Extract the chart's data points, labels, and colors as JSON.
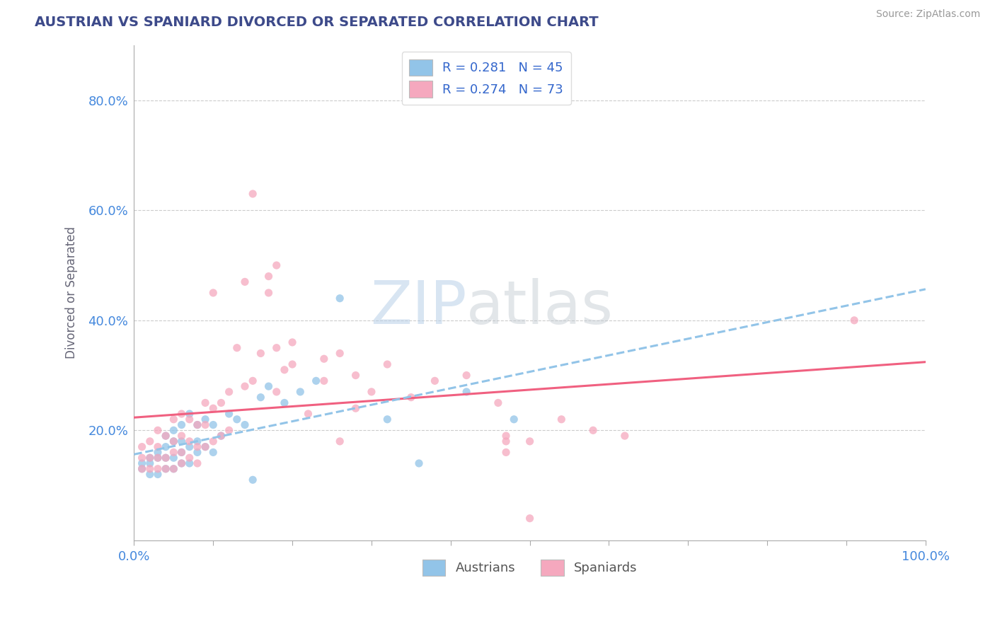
{
  "title": "AUSTRIAN VS SPANIARD DIVORCED OR SEPARATED CORRELATION CHART",
  "source": "Source: ZipAtlas.com",
  "ylabel": "Divorced or Separated",
  "xlim": [
    0.0,
    1.0
  ],
  "ylim": [
    0.0,
    0.9
  ],
  "ytick_vals": [
    0.2,
    0.4,
    0.6,
    0.8
  ],
  "ytick_labels": [
    "20.0%",
    "40.0%",
    "60.0%",
    "80.0%"
  ],
  "xtick_vals": [
    0.0,
    0.1,
    0.2,
    0.3,
    0.4,
    0.5,
    0.6,
    0.7,
    0.8,
    0.9,
    1.0
  ],
  "xtick_end_labels": [
    "0.0%",
    "100.0%"
  ],
  "watermark_zip": "ZIP",
  "watermark_atlas": "atlas",
  "background_color": "#FFFFFF",
  "grid_color": "#CCCCCC",
  "title_color": "#3d4a8a",
  "source_color": "#999999",
  "ylabel_color": "#666677",
  "tick_label_color": "#4488DD",
  "austrian_color": "#92C4E8",
  "spaniard_color": "#F5A8BE",
  "austrian_line_color": "#92C4E8",
  "spaniard_line_color": "#F06080",
  "legend_frame_color": "#DDDDDD",
  "legend_text_color": "#333333",
  "legend_val_color": "#3366CC",
  "austrians_x": [
    0.01,
    0.01,
    0.02,
    0.02,
    0.02,
    0.03,
    0.03,
    0.03,
    0.04,
    0.04,
    0.04,
    0.04,
    0.05,
    0.05,
    0.05,
    0.05,
    0.06,
    0.06,
    0.06,
    0.06,
    0.07,
    0.07,
    0.07,
    0.08,
    0.08,
    0.08,
    0.09,
    0.09,
    0.1,
    0.1,
    0.11,
    0.12,
    0.13,
    0.14,
    0.15,
    0.16,
    0.17,
    0.19,
    0.21,
    0.23,
    0.26,
    0.32,
    0.36,
    0.42,
    0.48
  ],
  "austrians_y": [
    0.13,
    0.14,
    0.12,
    0.14,
    0.15,
    0.12,
    0.15,
    0.16,
    0.13,
    0.15,
    0.17,
    0.19,
    0.13,
    0.15,
    0.18,
    0.2,
    0.14,
    0.16,
    0.18,
    0.21,
    0.14,
    0.17,
    0.23,
    0.16,
    0.18,
    0.21,
    0.17,
    0.22,
    0.16,
    0.21,
    0.19,
    0.23,
    0.22,
    0.21,
    0.11,
    0.26,
    0.28,
    0.25,
    0.27,
    0.29,
    0.44,
    0.22,
    0.14,
    0.27,
    0.22
  ],
  "spaniards_x": [
    0.01,
    0.01,
    0.01,
    0.02,
    0.02,
    0.02,
    0.03,
    0.03,
    0.03,
    0.03,
    0.04,
    0.04,
    0.04,
    0.05,
    0.05,
    0.05,
    0.05,
    0.06,
    0.06,
    0.06,
    0.06,
    0.07,
    0.07,
    0.07,
    0.08,
    0.08,
    0.08,
    0.09,
    0.09,
    0.09,
    0.1,
    0.1,
    0.11,
    0.11,
    0.12,
    0.12,
    0.13,
    0.14,
    0.15,
    0.16,
    0.17,
    0.18,
    0.19,
    0.2,
    0.22,
    0.24,
    0.26,
    0.28,
    0.3,
    0.32,
    0.35,
    0.38,
    0.42,
    0.46,
    0.5,
    0.54,
    0.58,
    0.62,
    0.91,
    0.15,
    0.17,
    0.18,
    0.2,
    0.24,
    0.26,
    0.28,
    0.47,
    0.47,
    0.47,
    0.5,
    0.1,
    0.14,
    0.18
  ],
  "spaniards_y": [
    0.13,
    0.15,
    0.17,
    0.13,
    0.15,
    0.18,
    0.13,
    0.15,
    0.17,
    0.2,
    0.13,
    0.15,
    0.19,
    0.13,
    0.16,
    0.18,
    0.22,
    0.14,
    0.16,
    0.19,
    0.23,
    0.15,
    0.18,
    0.22,
    0.14,
    0.17,
    0.21,
    0.17,
    0.21,
    0.25,
    0.18,
    0.24,
    0.19,
    0.25,
    0.2,
    0.27,
    0.35,
    0.28,
    0.29,
    0.34,
    0.45,
    0.27,
    0.31,
    0.32,
    0.23,
    0.29,
    0.34,
    0.3,
    0.27,
    0.32,
    0.26,
    0.29,
    0.3,
    0.25,
    0.18,
    0.22,
    0.2,
    0.19,
    0.4,
    0.63,
    0.48,
    0.35,
    0.36,
    0.33,
    0.18,
    0.24,
    0.18,
    0.19,
    0.16,
    0.04,
    0.45,
    0.47,
    0.5
  ]
}
